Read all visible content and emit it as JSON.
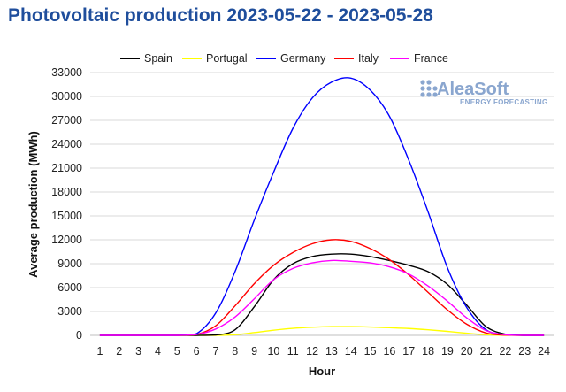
{
  "chart_data": {
    "type": "line",
    "title": "Photovoltaic production 2023-05-22 - 2023-05-28",
    "xlabel": "Hour",
    "ylabel": "Average production (MWh)",
    "x": [
      1,
      2,
      3,
      4,
      5,
      6,
      7,
      8,
      9,
      10,
      11,
      12,
      13,
      14,
      15,
      16,
      17,
      18,
      19,
      20,
      21,
      22,
      23,
      24
    ],
    "ylim": [
      0,
      33000
    ],
    "yticks": [
      0,
      3000,
      6000,
      9000,
      12000,
      15000,
      18000,
      21000,
      24000,
      27000,
      30000,
      33000
    ],
    "grid": true,
    "legend_position": "top",
    "series": [
      {
        "name": "Spain",
        "color": "#000000",
        "values": [
          0,
          0,
          0,
          0,
          0,
          0,
          50,
          700,
          3600,
          7000,
          9000,
          9900,
          10200,
          10200,
          9900,
          9400,
          8800,
          8000,
          6400,
          3800,
          1100,
          150,
          0,
          0
        ]
      },
      {
        "name": "Portugal",
        "color": "#ffff00",
        "values": [
          0,
          0,
          0,
          0,
          0,
          0,
          0,
          80,
          350,
          650,
          880,
          1020,
          1100,
          1100,
          1050,
          960,
          860,
          700,
          500,
          270,
          80,
          10,
          0,
          0
        ]
      },
      {
        "name": "Germany",
        "color": "#0000ff",
        "values": [
          0,
          0,
          0,
          0,
          0,
          200,
          2800,
          8000,
          14500,
          20500,
          26000,
          29800,
          31800,
          32300,
          30800,
          27500,
          22000,
          15500,
          8500,
          3500,
          700,
          100,
          0,
          0
        ]
      },
      {
        "name": "Italy",
        "color": "#ff0000",
        "values": [
          0,
          0,
          0,
          0,
          0,
          100,
          1200,
          3700,
          6500,
          8800,
          10400,
          11500,
          12000,
          11800,
          10900,
          9500,
          7600,
          5400,
          3200,
          1400,
          300,
          30,
          0,
          0
        ]
      },
      {
        "name": "France",
        "color": "#ff00ff",
        "values": [
          0,
          0,
          0,
          0,
          0,
          100,
          800,
          2300,
          4600,
          7000,
          8400,
          9100,
          9400,
          9300,
          9100,
          8600,
          7700,
          6200,
          4300,
          2200,
          600,
          80,
          0,
          0
        ]
      }
    ]
  },
  "watermark": {
    "brand": "AleaSoft",
    "tagline": "ENERGY FORECASTING"
  }
}
